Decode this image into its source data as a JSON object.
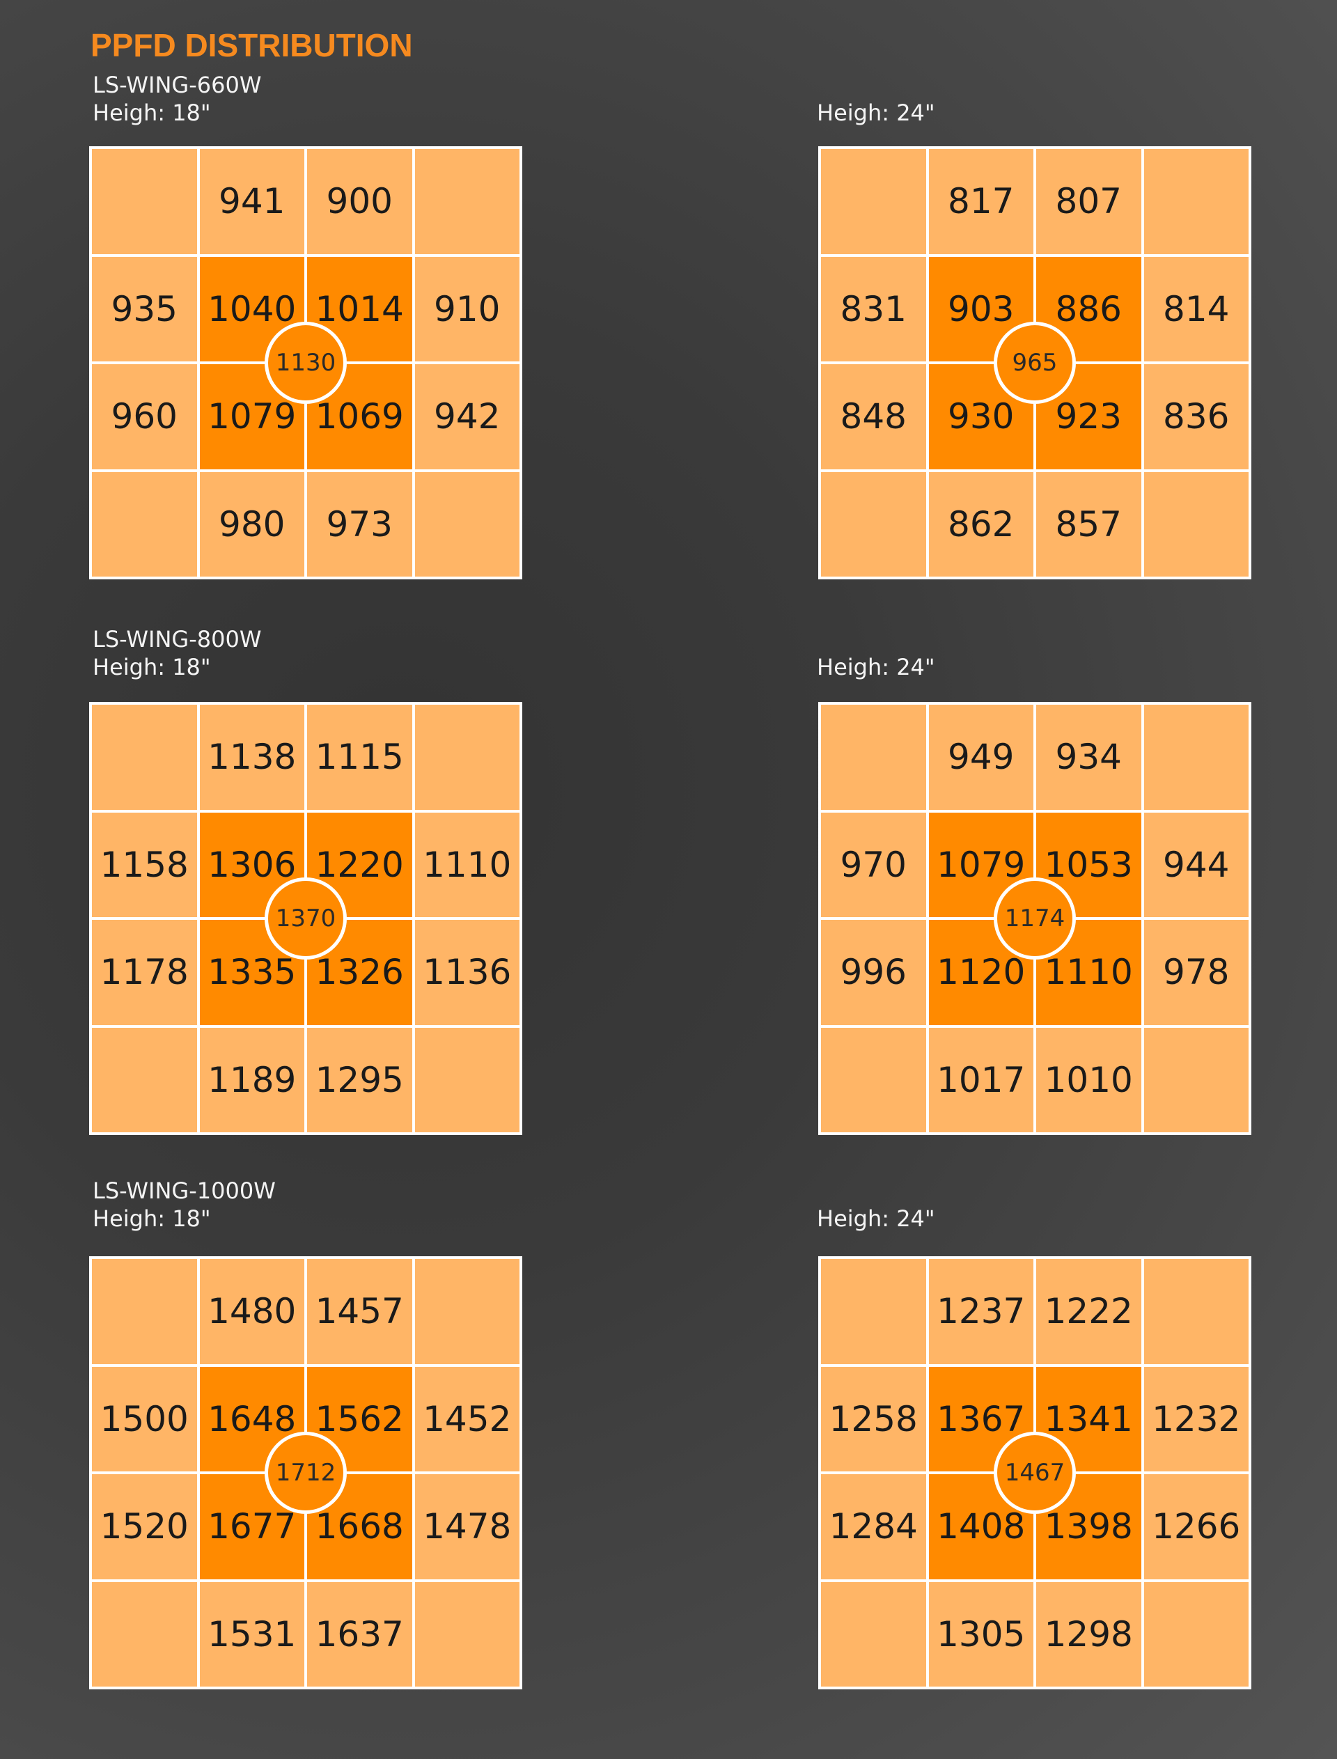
{
  "title": "PPFD DISTRIBUTION",
  "colors": {
    "title": "#f68a1f",
    "outer_cell": "#ffb566",
    "inner_cell": "#ff8a00",
    "grid_line": "#ffffff",
    "background": "#3d3d3d"
  },
  "chart_data": [
    {
      "type": "heatmap",
      "model": "LS-WING-660W",
      "height_label": "Heigh: 18\"",
      "center": 1130,
      "rows": [
        [
          "",
          941,
          900,
          ""
        ],
        [
          935,
          1040,
          1014,
          910
        ],
        [
          960,
          1079,
          1069,
          942
        ],
        [
          "",
          980,
          973,
          ""
        ]
      ]
    },
    {
      "type": "heatmap",
      "model": "",
      "height_label": "Heigh: 24\"",
      "center": 965,
      "rows": [
        [
          "",
          817,
          807,
          ""
        ],
        [
          831,
          903,
          886,
          814
        ],
        [
          848,
          930,
          923,
          836
        ],
        [
          "",
          862,
          857,
          ""
        ]
      ]
    },
    {
      "type": "heatmap",
      "model": "LS-WING-800W",
      "height_label": "Heigh: 18\"",
      "center": 1370,
      "rows": [
        [
          "",
          1138,
          1115,
          ""
        ],
        [
          1158,
          1306,
          1220,
          1110
        ],
        [
          1178,
          1335,
          1326,
          1136
        ],
        [
          "",
          1189,
          1295,
          ""
        ]
      ]
    },
    {
      "type": "heatmap",
      "model": "",
      "height_label": "Heigh: 24\"",
      "center": 1174,
      "rows": [
        [
          "",
          949,
          934,
          ""
        ],
        [
          970,
          1079,
          1053,
          944
        ],
        [
          996,
          1120,
          1110,
          978
        ],
        [
          "",
          1017,
          1010,
          ""
        ]
      ]
    },
    {
      "type": "heatmap",
      "model": "LS-WING-1000W",
      "height_label": "Heigh: 18\"",
      "center": 1712,
      "rows": [
        [
          "",
          1480,
          1457,
          ""
        ],
        [
          1500,
          1648,
          1562,
          1452
        ],
        [
          1520,
          1677,
          1668,
          1478
        ],
        [
          "",
          1531,
          1637,
          ""
        ]
      ]
    },
    {
      "type": "heatmap",
      "model": "",
      "height_label": "Heigh: 24\"",
      "center": 1467,
      "rows": [
        [
          "",
          1237,
          1222,
          ""
        ],
        [
          1258,
          1367,
          1341,
          1232
        ],
        [
          1284,
          1408,
          1398,
          1266
        ],
        [
          "",
          1305,
          1298,
          ""
        ]
      ]
    }
  ]
}
